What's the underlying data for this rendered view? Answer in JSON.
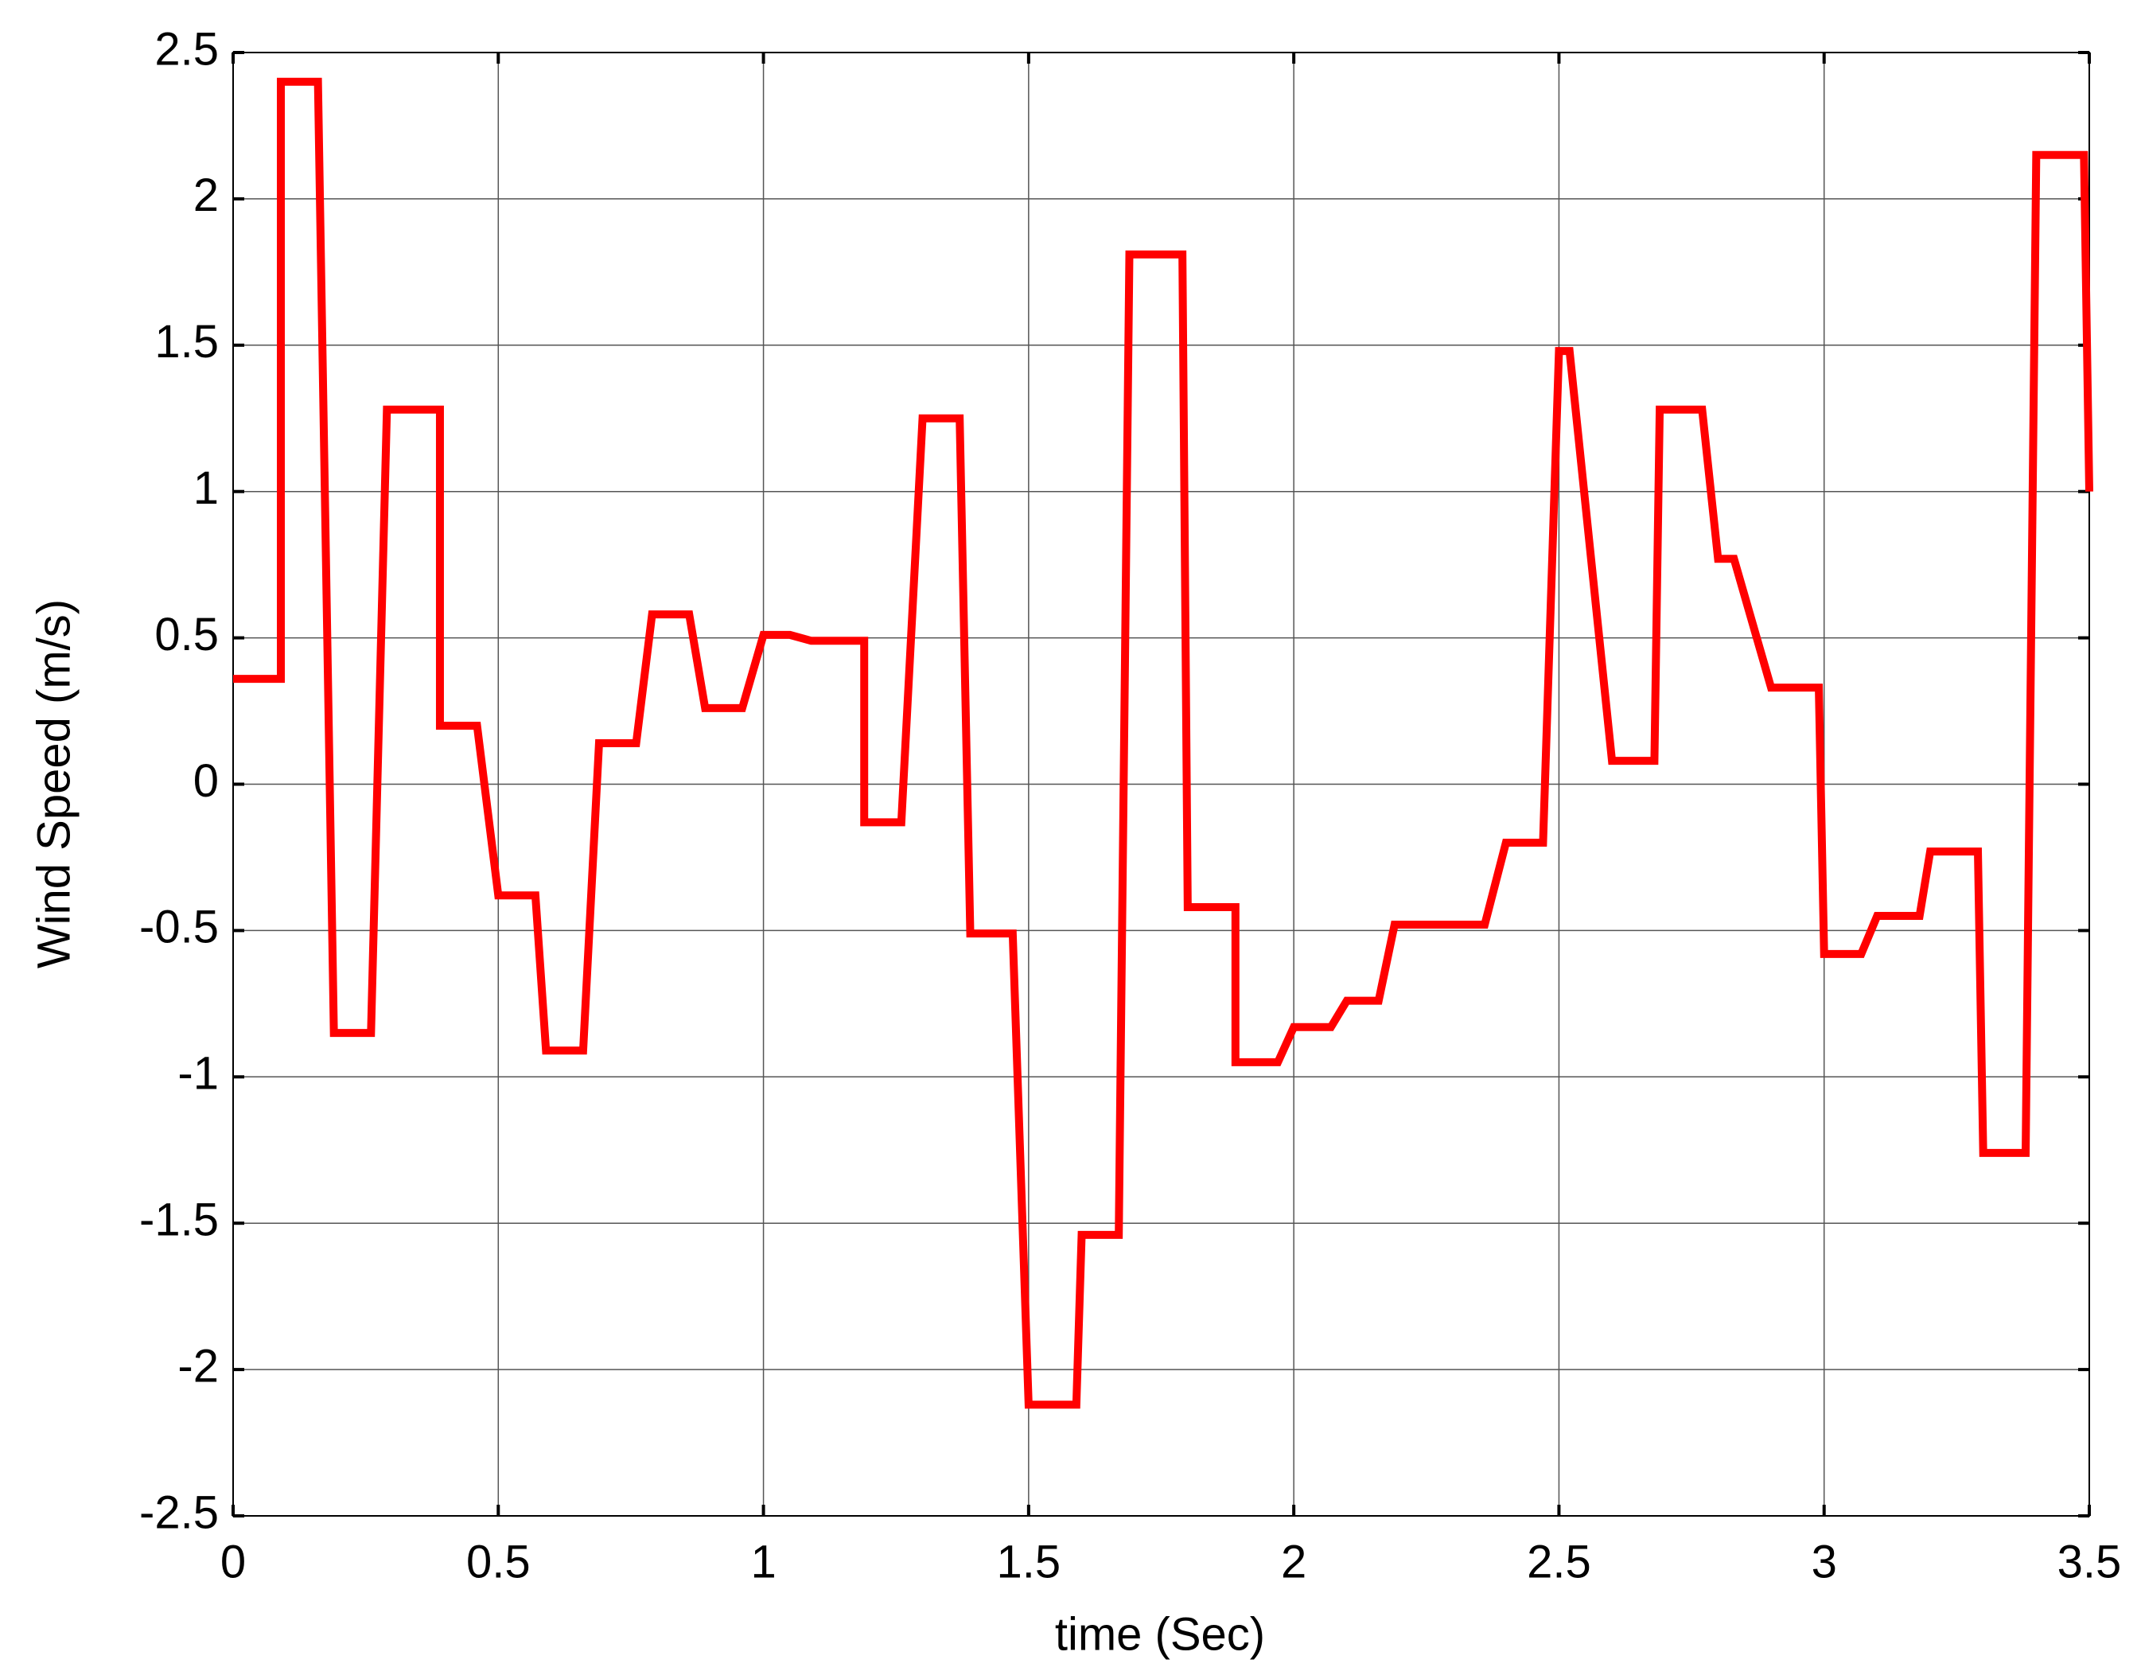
{
  "chart_data": {
    "type": "line",
    "xlabel": "time (Sec)",
    "ylabel": "Wind Speed (m/s)",
    "x": [
      0,
      0.09,
      0.09,
      0.16,
      0.19,
      0.26,
      0.29,
      0.39,
      0.39,
      0.46,
      0.5,
      0.57,
      0.59,
      0.66,
      0.69,
      0.76,
      0.79,
      0.86,
      0.89,
      0.96,
      1.0,
      1.05,
      1.09,
      1.19,
      1.19,
      1.26,
      1.3,
      1.37,
      1.39,
      1.47,
      1.5,
      1.59,
      1.6,
      1.67,
      1.69,
      1.79,
      1.8,
      1.89,
      1.89,
      1.97,
      2.0,
      2.07,
      2.1,
      2.16,
      2.19,
      2.36,
      2.4,
      2.47,
      2.5,
      2.52,
      2.6,
      2.68,
      2.69,
      2.77,
      2.8,
      2.83,
      2.9,
      2.99,
      3.0,
      3.07,
      3.1,
      3.18,
      3.2,
      3.29,
      3.3,
      3.38,
      3.4,
      3.49,
      3.5
    ],
    "series": [
      {
        "color": "#ff0000",
        "values": [
          0.36,
          0.36,
          2.4,
          2.4,
          -0.85,
          -0.85,
          1.28,
          1.28,
          0.2,
          0.2,
          -0.38,
          -0.38,
          -0.91,
          -0.91,
          0.14,
          0.14,
          0.58,
          0.58,
          0.26,
          0.26,
          0.51,
          0.51,
          0.49,
          0.49,
          -0.13,
          -0.13,
          1.25,
          1.25,
          -0.51,
          -0.51,
          -2.12,
          -2.12,
          -1.54,
          -1.54,
          1.81,
          1.81,
          -0.42,
          -0.42,
          -0.95,
          -0.95,
          -0.83,
          -0.83,
          -0.74,
          -0.74,
          -0.48,
          -0.48,
          -0.2,
          -0.2,
          1.48,
          1.48,
          0.08,
          0.08,
          1.28,
          1.28,
          0.77,
          0.77,
          0.33,
          0.33,
          -0.58,
          -0.58,
          -0.45,
          -0.45,
          -0.23,
          -0.23,
          -1.26,
          -1.26,
          2.15,
          2.15,
          1.0
        ]
      }
    ],
    "xlim": [
      0,
      3.5
    ],
    "xticks": [
      0,
      0.5,
      1,
      1.5,
      2,
      2.5,
      3,
      3.5
    ],
    "ylim": [
      -2.5,
      2.5
    ],
    "yticks": [
      -2.5,
      -2,
      -1.5,
      -1,
      -0.5,
      0,
      0.5,
      1,
      1.5,
      2,
      2.5
    ],
    "grid": true
  }
}
